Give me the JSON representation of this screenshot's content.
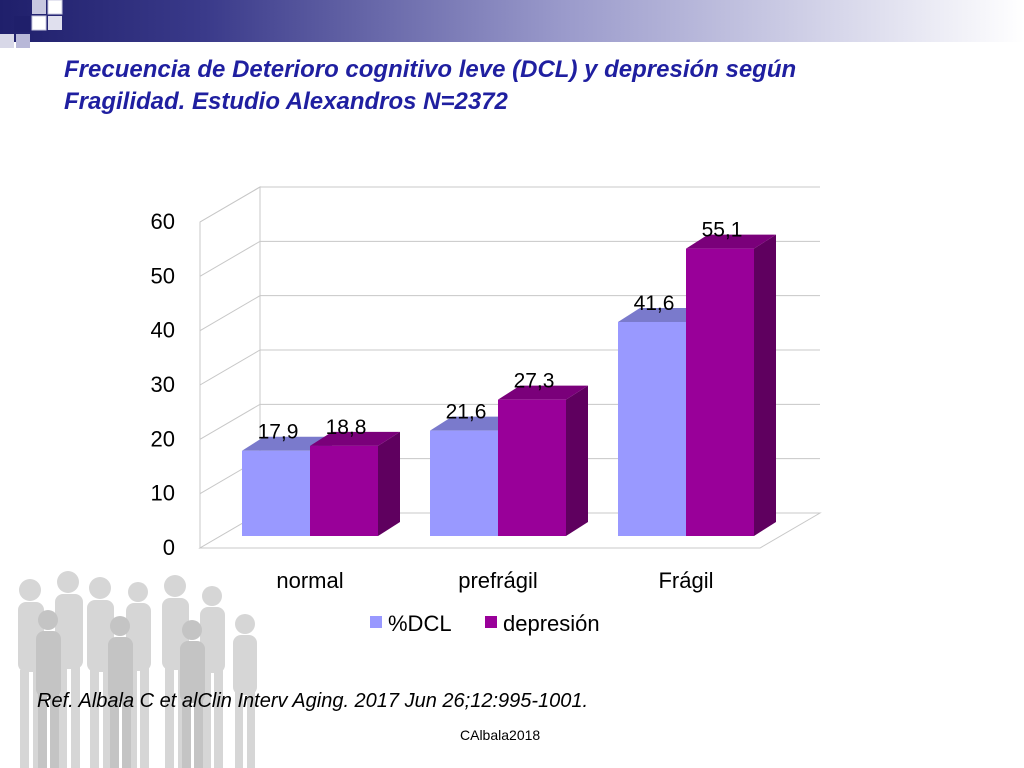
{
  "slide": {
    "title_line1": "Frecuencia de Deterioro cognitivo leve (DCL) y depresión según",
    "title_line2": "Fragilidad. Estudio Alexandros N=2372",
    "reference": "Ref. Albala C et alClin Interv Aging. 2017 Jun 26;12:995-1001.",
    "footer": "CAlbala2018"
  },
  "colors": {
    "title": "#1f1fa0",
    "dcl": "#9999ff",
    "depresion": "#990099"
  },
  "chart_data": {
    "type": "bar",
    "title": "",
    "xlabel": "",
    "ylabel": "",
    "categories": [
      "normal",
      "prefrágil",
      "Frágil"
    ],
    "series": [
      {
        "name": "%DCL",
        "values": [
          17.9,
          21.6,
          41.6
        ],
        "labels": [
          "17,9",
          "21,6",
          "41,6"
        ]
      },
      {
        "name": "depresión",
        "values": [
          18.8,
          27.3,
          55.1
        ],
        "labels": [
          "18,8",
          "27,3",
          "55,1"
        ]
      }
    ],
    "yticks": [
      "0",
      "10",
      "20",
      "30",
      "40",
      "50",
      "60"
    ],
    "ylim": [
      0,
      60
    ],
    "grid": true,
    "legend": "bottom",
    "style": "3d-clustered-column"
  }
}
